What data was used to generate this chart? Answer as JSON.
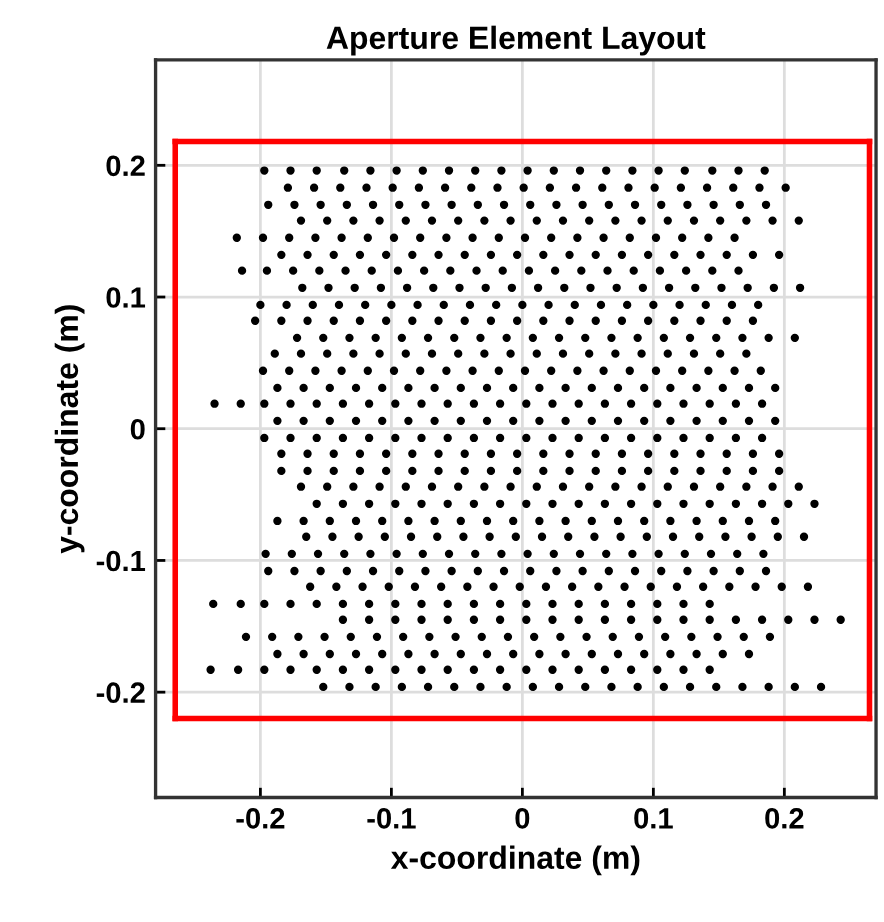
{
  "chart_data": {
    "type": "scatter",
    "title": "Aperture Element Layout",
    "xlabel": "x-coordinate (m)",
    "ylabel": "y-coordinate (m)",
    "xlim": [
      -0.28,
      0.27
    ],
    "ylim": [
      -0.28,
      0.28
    ],
    "xticks": [
      -0.2,
      -0.1,
      0,
      0.1,
      0.2
    ],
    "yticks": [
      -0.2,
      -0.1,
      0,
      0.1,
      0.2
    ],
    "grid": true,
    "marker": "circle",
    "series": [
      {
        "color": "#000000",
        "x": [
          -0.197,
          -0.177,
          -0.157,
          -0.136,
          -0.116,
          -0.096,
          -0.076,
          -0.056,
          -0.036,
          -0.016,
          0.004,
          0.024,
          0.044,
          0.064,
          0.084,
          0.104,
          0.124,
          0.145,
          0.165,
          0.185
        ],
        "values": [
          0.196,
          0.196,
          0.196,
          0.196,
          0.196,
          0.196,
          0.196,
          0.196,
          0.196,
          0.196,
          0.196,
          0.196,
          0.196,
          0.196,
          0.196,
          0.196,
          0.196,
          0.196,
          0.196,
          0.196
        ]
      },
      {
        "color": "#000000",
        "x": [
          -0.179,
          -0.159,
          -0.139,
          -0.119,
          -0.099,
          -0.079,
          -0.059,
          -0.039,
          -0.019,
          0.001,
          0.021,
          0.041,
          0.061,
          0.081,
          0.101,
          0.121,
          0.141,
          0.161,
          0.181,
          0.201
        ],
        "values": [
          0.183,
          0.183,
          0.183,
          0.183,
          0.183,
          0.183,
          0.183,
          0.183,
          0.183,
          0.183,
          0.183,
          0.183,
          0.183,
          0.183,
          0.183,
          0.183,
          0.183,
          0.183,
          0.183,
          0.183
        ]
      },
      {
        "color": "#000000",
        "x": [
          -0.194,
          -0.174,
          -0.154,
          -0.134,
          -0.114,
          -0.094,
          -0.074,
          -0.054,
          -0.034,
          -0.014,
          0.006,
          0.026,
          0.046,
          0.066,
          0.086,
          0.106,
          0.126,
          0.146,
          0.166,
          0.186
        ],
        "values": [
          0.17,
          0.17,
          0.17,
          0.17,
          0.17,
          0.17,
          0.17,
          0.17,
          0.17,
          0.17,
          0.17,
          0.17,
          0.17,
          0.17,
          0.17,
          0.17,
          0.17,
          0.17,
          0.17,
          0.17
        ]
      },
      {
        "color": "#000000",
        "x": [
          -0.169,
          -0.149,
          -0.129,
          -0.109,
          -0.089,
          -0.069,
          -0.049,
          -0.029,
          -0.009,
          0.011,
          0.031,
          0.051,
          0.071,
          0.091,
          0.111,
          0.131,
          0.151,
          0.171,
          0.191,
          0.211
        ],
        "values": [
          0.158,
          0.158,
          0.158,
          0.158,
          0.158,
          0.158,
          0.158,
          0.158,
          0.158,
          0.158,
          0.158,
          0.158,
          0.158,
          0.158,
          0.158,
          0.158,
          0.158,
          0.158,
          0.158,
          0.158
        ]
      },
      {
        "color": "#000000",
        "x": [
          -0.218,
          -0.198,
          -0.178,
          -0.158,
          -0.138,
          -0.118,
          -0.098,
          -0.078,
          -0.058,
          -0.038,
          -0.018,
          0.002,
          0.022,
          0.042,
          0.062,
          0.082,
          0.102,
          0.122,
          0.142,
          0.162
        ],
        "values": [
          0.145,
          0.145,
          0.145,
          0.145,
          0.145,
          0.145,
          0.145,
          0.145,
          0.145,
          0.145,
          0.145,
          0.145,
          0.145,
          0.145,
          0.145,
          0.145,
          0.145,
          0.145,
          0.145,
          0.145
        ]
      },
      {
        "color": "#000000",
        "x": [
          -0.184,
          -0.164,
          -0.144,
          -0.124,
          -0.104,
          -0.084,
          -0.064,
          -0.044,
          -0.024,
          -0.004,
          0.016,
          0.036,
          0.056,
          0.076,
          0.096,
          0.116,
          0.136,
          0.156,
          0.176,
          0.196
        ],
        "values": [
          0.132,
          0.132,
          0.132,
          0.132,
          0.132,
          0.132,
          0.132,
          0.132,
          0.132,
          0.132,
          0.132,
          0.132,
          0.132,
          0.132,
          0.132,
          0.132,
          0.132,
          0.132,
          0.132,
          0.132
        ]
      },
      {
        "color": "#000000",
        "x": [
          -0.214,
          -0.195,
          -0.175,
          -0.155,
          -0.135,
          -0.115,
          -0.095,
          -0.075,
          -0.055,
          -0.035,
          -0.015,
          0.005,
          0.025,
          0.045,
          0.065,
          0.085,
          0.105,
          0.125,
          0.145,
          0.165
        ],
        "values": [
          0.12,
          0.12,
          0.12,
          0.12,
          0.12,
          0.12,
          0.12,
          0.12,
          0.12,
          0.12,
          0.12,
          0.12,
          0.12,
          0.12,
          0.12,
          0.12,
          0.12,
          0.12,
          0.12,
          0.12
        ]
      },
      {
        "color": "#000000",
        "x": [
          -0.168,
          -0.148,
          -0.128,
          -0.108,
          -0.088,
          -0.068,
          -0.048,
          -0.028,
          -0.008,
          0.012,
          0.032,
          0.052,
          0.072,
          0.092,
          0.112,
          0.132,
          0.152,
          0.172,
          0.192,
          0.212
        ],
        "values": [
          0.107,
          0.107,
          0.107,
          0.107,
          0.107,
          0.107,
          0.107,
          0.107,
          0.107,
          0.107,
          0.107,
          0.107,
          0.107,
          0.107,
          0.107,
          0.107,
          0.107,
          0.107,
          0.107,
          0.107
        ]
      },
      {
        "color": "#000000",
        "x": [
          -0.2,
          -0.18,
          -0.16,
          -0.14,
          -0.12,
          -0.1,
          -0.08,
          -0.06,
          -0.04,
          -0.02,
          0,
          0.02,
          0.04,
          0.06,
          0.08,
          0.1,
          0.12,
          0.14,
          0.16,
          0.18
        ],
        "values": [
          0.094,
          0.094,
          0.094,
          0.094,
          0.094,
          0.094,
          0.094,
          0.094,
          0.094,
          0.094,
          0.094,
          0.094,
          0.094,
          0.094,
          0.094,
          0.094,
          0.094,
          0.094,
          0.094,
          0.094
        ]
      },
      {
        "color": "#000000",
        "x": [
          -0.204,
          -0.184,
          -0.164,
          -0.144,
          -0.124,
          -0.104,
          -0.084,
          -0.064,
          -0.044,
          -0.024,
          -0.004,
          0.016,
          0.036,
          0.056,
          0.076,
          0.096,
          0.116,
          0.136,
          0.156,
          0.176
        ],
        "values": [
          0.082,
          0.082,
          0.082,
          0.082,
          0.082,
          0.082,
          0.082,
          0.082,
          0.082,
          0.082,
          0.082,
          0.082,
          0.082,
          0.082,
          0.082,
          0.082,
          0.082,
          0.082,
          0.082,
          0.082
        ]
      },
      {
        "color": "#000000",
        "x": [
          -0.172,
          -0.152,
          -0.132,
          -0.112,
          -0.092,
          -0.072,
          -0.052,
          -0.032,
          -0.012,
          0.008,
          0.028,
          0.048,
          0.068,
          0.088,
          0.108,
          0.128,
          0.148,
          0.168,
          0.188,
          0.208
        ],
        "values": [
          0.069,
          0.069,
          0.069,
          0.069,
          0.069,
          0.069,
          0.069,
          0.069,
          0.069,
          0.069,
          0.069,
          0.069,
          0.069,
          0.069,
          0.069,
          0.069,
          0.069,
          0.069,
          0.069,
          0.069
        ]
      },
      {
        "color": "#000000",
        "x": [
          -0.189,
          -0.169,
          -0.149,
          -0.129,
          -0.109,
          -0.089,
          -0.069,
          -0.049,
          -0.029,
          -0.009,
          0.011,
          0.031,
          0.051,
          0.071,
          0.091,
          0.111,
          0.131,
          0.151,
          0.171
        ],
        "values": [
          0.057,
          0.057,
          0.057,
          0.057,
          0.057,
          0.057,
          0.057,
          0.057,
          0.057,
          0.057,
          0.057,
          0.057,
          0.057,
          0.057,
          0.057,
          0.057,
          0.057,
          0.057,
          0.057
        ]
      },
      {
        "color": "#000000",
        "x": [
          -0.198,
          -0.178,
          -0.158,
          -0.138,
          -0.118,
          -0.098,
          -0.078,
          -0.058,
          -0.038,
          -0.018,
          0.002,
          0.022,
          0.042,
          0.062,
          0.082,
          0.102,
          0.122,
          0.142,
          0.162,
          0.182
        ],
        "values": [
          0.044,
          0.044,
          0.044,
          0.044,
          0.044,
          0.044,
          0.044,
          0.044,
          0.044,
          0.044,
          0.044,
          0.044,
          0.044,
          0.044,
          0.044,
          0.044,
          0.044,
          0.044,
          0.044,
          0.044
        ]
      },
      {
        "color": "#000000",
        "x": [
          -0.187,
          -0.167,
          -0.147,
          -0.127,
          -0.107,
          -0.087,
          -0.067,
          -0.047,
          -0.027,
          -0.007,
          0.013,
          0.033,
          0.053,
          0.073,
          0.093,
          0.113,
          0.133,
          0.153,
          0.173,
          0.193
        ],
        "values": [
          0.031,
          0.031,
          0.031,
          0.031,
          0.031,
          0.031,
          0.031,
          0.031,
          0.031,
          0.031,
          0.031,
          0.031,
          0.031,
          0.031,
          0.031,
          0.031,
          0.031,
          0.031,
          0.031,
          0.031
        ]
      },
      {
        "color": "#000000",
        "x": [
          -0.235,
          -0.215,
          -0.197,
          -0.177,
          -0.157,
          -0.137,
          -0.117,
          -0.097,
          -0.077,
          -0.057,
          -0.037,
          -0.017,
          0.003,
          0.023,
          0.043,
          0.063,
          0.083,
          0.103,
          0.123,
          0.143,
          0.163,
          0.183
        ],
        "values": [
          0.019,
          0.019,
          0.019,
          0.019,
          0.019,
          0.019,
          0.019,
          0.019,
          0.019,
          0.019,
          0.019,
          0.019,
          0.019,
          0.019,
          0.019,
          0.019,
          0.019,
          0.019,
          0.019,
          0.019,
          0.019,
          0.019
        ]
      },
      {
        "color": "#000000",
        "x": [
          -0.187,
          -0.167,
          -0.147,
          -0.127,
          -0.107,
          -0.087,
          -0.067,
          -0.047,
          -0.027,
          -0.007,
          0.013,
          0.033,
          0.053,
          0.073,
          0.093,
          0.113,
          0.133,
          0.153,
          0.173,
          0.193
        ],
        "values": [
          0.006,
          0.006,
          0.006,
          0.006,
          0.006,
          0.006,
          0.006,
          0.006,
          0.006,
          0.006,
          0.006,
          0.006,
          0.006,
          0.006,
          0.006,
          0.006,
          0.006,
          0.006,
          0.006,
          0.006
        ]
      },
      {
        "color": "#000000",
        "x": [
          -0.197,
          -0.177,
          -0.157,
          -0.137,
          -0.117,
          -0.097,
          -0.077,
          -0.057,
          -0.037,
          -0.017,
          0.003,
          0.023,
          0.043,
          0.063,
          0.083,
          0.103,
          0.123,
          0.143,
          0.163,
          0.183
        ],
        "values": [
          -0.007,
          -0.007,
          -0.007,
          -0.007,
          -0.007,
          -0.007,
          -0.007,
          -0.007,
          -0.007,
          -0.007,
          -0.007,
          -0.007,
          -0.007,
          -0.007,
          -0.007,
          -0.007,
          -0.007,
          -0.007,
          -0.007,
          -0.007
        ]
      },
      {
        "color": "#000000",
        "x": [
          -0.184,
          -0.164,
          -0.144,
          -0.124,
          -0.104,
          -0.084,
          -0.064,
          -0.044,
          -0.024,
          -0.004,
          0.016,
          0.036,
          0.056,
          0.076,
          0.096,
          0.116,
          0.136,
          0.156,
          0.176,
          0.196
        ],
        "values": [
          -0.019,
          -0.019,
          -0.019,
          -0.019,
          -0.019,
          -0.019,
          -0.019,
          -0.019,
          -0.019,
          -0.019,
          -0.019,
          -0.019,
          -0.019,
          -0.019,
          -0.019,
          -0.019,
          -0.019,
          -0.019,
          -0.019,
          -0.019
        ]
      },
      {
        "color": "#000000",
        "x": [
          -0.184,
          -0.164,
          -0.144,
          -0.124,
          -0.104,
          -0.084,
          -0.064,
          -0.044,
          -0.024,
          -0.004,
          0.016,
          0.036,
          0.056,
          0.076,
          0.096,
          0.116,
          0.136,
          0.156,
          0.176,
          0.196
        ],
        "values": [
          -0.032,
          -0.032,
          -0.032,
          -0.032,
          -0.032,
          -0.032,
          -0.032,
          -0.032,
          -0.032,
          -0.032,
          -0.032,
          -0.032,
          -0.032,
          -0.032,
          -0.032,
          -0.032,
          -0.032,
          -0.032,
          -0.032,
          -0.032
        ]
      },
      {
        "color": "#000000",
        "x": [
          -0.169,
          -0.149,
          -0.129,
          -0.109,
          -0.089,
          -0.069,
          -0.049,
          -0.029,
          -0.009,
          0.011,
          0.031,
          0.051,
          0.071,
          0.091,
          0.111,
          0.131,
          0.151,
          0.171,
          0.191,
          0.211
        ],
        "values": [
          -0.044,
          -0.044,
          -0.044,
          -0.044,
          -0.044,
          -0.044,
          -0.044,
          -0.044,
          -0.044,
          -0.044,
          -0.044,
          -0.044,
          -0.044,
          -0.044,
          -0.044,
          -0.044,
          -0.044,
          -0.044,
          -0.044,
          -0.044
        ]
      },
      {
        "color": "#000000",
        "x": [
          -0.157,
          -0.137,
          -0.117,
          -0.097,
          -0.077,
          -0.057,
          -0.037,
          -0.017,
          0.003,
          0.023,
          0.043,
          0.063,
          0.083,
          0.103,
          0.123,
          0.143,
          0.163,
          0.183,
          0.203,
          0.223
        ],
        "values": [
          -0.057,
          -0.057,
          -0.057,
          -0.057,
          -0.057,
          -0.057,
          -0.057,
          -0.057,
          -0.057,
          -0.057,
          -0.057,
          -0.057,
          -0.057,
          -0.057,
          -0.057,
          -0.057,
          -0.057,
          -0.057,
          -0.057,
          -0.057
        ]
      },
      {
        "color": "#000000",
        "x": [
          -0.187,
          -0.167,
          -0.147,
          -0.127,
          -0.107,
          -0.087,
          -0.067,
          -0.047,
          -0.027,
          -0.007,
          0.013,
          0.033,
          0.053,
          0.073,
          0.093,
          0.113,
          0.133,
          0.153,
          0.173,
          0.193
        ],
        "values": [
          -0.07,
          -0.07,
          -0.07,
          -0.07,
          -0.07,
          -0.07,
          -0.07,
          -0.07,
          -0.07,
          -0.07,
          -0.07,
          -0.07,
          -0.07,
          -0.07,
          -0.07,
          -0.07,
          -0.07,
          -0.07,
          -0.07,
          -0.07
        ]
      },
      {
        "color": "#000000",
        "x": [
          -0.165,
          -0.145,
          -0.125,
          -0.105,
          -0.085,
          -0.065,
          -0.045,
          -0.025,
          -0.005,
          0.015,
          0.035,
          0.055,
          0.075,
          0.095,
          0.115,
          0.135,
          0.155,
          0.175,
          0.195,
          0.215
        ],
        "values": [
          -0.082,
          -0.082,
          -0.082,
          -0.082,
          -0.082,
          -0.082,
          -0.082,
          -0.082,
          -0.082,
          -0.082,
          -0.082,
          -0.082,
          -0.082,
          -0.082,
          -0.082,
          -0.082,
          -0.082,
          -0.082,
          -0.082,
          -0.082
        ]
      },
      {
        "color": "#000000",
        "x": [
          -0.196,
          -0.176,
          -0.156,
          -0.136,
          -0.116,
          -0.096,
          -0.076,
          -0.056,
          -0.036,
          -0.016,
          0.004,
          0.024,
          0.044,
          0.064,
          0.084,
          0.104,
          0.124,
          0.144,
          0.164,
          0.184
        ],
        "values": [
          -0.095,
          -0.095,
          -0.095,
          -0.095,
          -0.095,
          -0.095,
          -0.095,
          -0.095,
          -0.095,
          -0.095,
          -0.095,
          -0.095,
          -0.095,
          -0.095,
          -0.095,
          -0.095,
          -0.095,
          -0.095,
          -0.095,
          -0.095
        ]
      },
      {
        "color": "#000000",
        "x": [
          -0.194,
          -0.174,
          -0.154,
          -0.134,
          -0.114,
          -0.094,
          -0.074,
          -0.054,
          -0.034,
          -0.014,
          0.006,
          0.026,
          0.046,
          0.066,
          0.086,
          0.106,
          0.126,
          0.146,
          0.166,
          0.186
        ],
        "values": [
          -0.108,
          -0.108,
          -0.108,
          -0.108,
          -0.108,
          -0.108,
          -0.108,
          -0.108,
          -0.108,
          -0.108,
          -0.108,
          -0.108,
          -0.108,
          -0.108,
          -0.108,
          -0.108,
          -0.108,
          -0.108,
          -0.108,
          -0.108
        ]
      },
      {
        "color": "#000000",
        "x": [
          -0.162,
          -0.142,
          -0.122,
          -0.102,
          -0.082,
          -0.062,
          -0.042,
          -0.022,
          -0.002,
          0.018,
          0.038,
          0.058,
          0.078,
          0.098,
          0.118,
          0.138,
          0.158,
          0.178,
          0.198,
          0.218
        ],
        "values": [
          -0.12,
          -0.12,
          -0.12,
          -0.12,
          -0.12,
          -0.12,
          -0.12,
          -0.12,
          -0.12,
          -0.12,
          -0.12,
          -0.12,
          -0.12,
          -0.12,
          -0.12,
          -0.12,
          -0.12,
          -0.12,
          -0.12,
          -0.12
        ]
      },
      {
        "color": "#000000",
        "x": [
          -0.236,
          -0.215,
          -0.197,
          -0.177,
          -0.157,
          -0.137,
          -0.117,
          -0.097,
          -0.077,
          -0.057,
          -0.037,
          -0.017,
          0.003,
          0.023,
          0.043,
          0.063,
          0.083,
          0.103,
          0.123,
          0.143
        ],
        "values": [
          -0.133,
          -0.133,
          -0.133,
          -0.133,
          -0.133,
          -0.133,
          -0.133,
          -0.133,
          -0.133,
          -0.133,
          -0.133,
          -0.133,
          -0.133,
          -0.133,
          -0.133,
          -0.133,
          -0.133,
          -0.133,
          -0.133,
          -0.133
        ]
      },
      {
        "color": "#000000",
        "x": [
          -0.137,
          -0.117,
          -0.097,
          -0.077,
          -0.057,
          -0.037,
          -0.017,
          0.003,
          0.023,
          0.043,
          0.063,
          0.083,
          0.103,
          0.123,
          0.143,
          0.163,
          0.183,
          0.203,
          0.223,
          0.243
        ],
        "values": [
          -0.145,
          -0.145,
          -0.145,
          -0.145,
          -0.145,
          -0.145,
          -0.145,
          -0.145,
          -0.145,
          -0.145,
          -0.145,
          -0.145,
          -0.145,
          -0.145,
          -0.145,
          -0.145,
          -0.145,
          -0.145,
          -0.145,
          -0.145
        ]
      },
      {
        "color": "#000000",
        "x": [
          -0.211,
          -0.191,
          -0.171,
          -0.151,
          -0.131,
          -0.111,
          -0.091,
          -0.071,
          -0.051,
          -0.031,
          -0.011,
          0.009,
          0.029,
          0.049,
          0.069,
          0.089,
          0.109,
          0.129,
          0.149,
          0.169,
          0.189
        ],
        "values": [
          -0.158,
          -0.158,
          -0.158,
          -0.158,
          -0.158,
          -0.158,
          -0.158,
          -0.158,
          -0.158,
          -0.158,
          -0.158,
          -0.158,
          -0.158,
          -0.158,
          -0.158,
          -0.158,
          -0.158,
          -0.158,
          -0.158,
          -0.158,
          -0.158
        ]
      },
      {
        "color": "#000000",
        "x": [
          -0.187,
          -0.167,
          -0.147,
          -0.127,
          -0.107,
          -0.087,
          -0.067,
          -0.047,
          -0.027,
          -0.007,
          0.013,
          0.033,
          0.053,
          0.073,
          0.093,
          0.113,
          0.133,
          0.153,
          0.173
        ],
        "values": [
          -0.171,
          -0.171,
          -0.171,
          -0.171,
          -0.171,
          -0.171,
          -0.171,
          -0.171,
          -0.171,
          -0.171,
          -0.171,
          -0.171,
          -0.171,
          -0.171,
          -0.171,
          -0.171,
          -0.171,
          -0.171,
          -0.171
        ]
      },
      {
        "color": "#000000",
        "x": [
          -0.238,
          -0.217,
          -0.197,
          -0.177,
          -0.157,
          -0.137,
          -0.117,
          -0.097,
          -0.077,
          -0.057,
          -0.037,
          -0.017,
          0.003,
          0.023,
          0.043,
          0.063,
          0.083,
          0.103,
          0.123,
          0.143
        ],
        "values": [
          -0.183,
          -0.183,
          -0.183,
          -0.183,
          -0.183,
          -0.183,
          -0.183,
          -0.183,
          -0.183,
          -0.183,
          -0.183,
          -0.183,
          -0.183,
          -0.183,
          -0.183,
          -0.183,
          -0.183,
          -0.183,
          -0.183,
          -0.183
        ]
      },
      {
        "color": "#000000",
        "x": [
          -0.152,
          -0.132,
          -0.112,
          -0.092,
          -0.072,
          -0.052,
          -0.032,
          -0.012,
          0.008,
          0.028,
          0.048,
          0.068,
          0.088,
          0.108,
          0.128,
          0.148,
          0.168,
          0.188,
          0.208,
          0.228
        ],
        "values": [
          -0.196,
          -0.196,
          -0.196,
          -0.196,
          -0.196,
          -0.196,
          -0.196,
          -0.196,
          -0.196,
          -0.196,
          -0.196,
          -0.196,
          -0.196,
          -0.196,
          -0.196,
          -0.196,
          -0.196,
          -0.196,
          -0.196,
          -0.196
        ]
      },
      {
        "type": "line",
        "color": "#ff0000",
        "marker": "none",
        "x": [
          -0.265,
          0.265
        ],
        "values": [
          0.218,
          0.218
        ]
      },
      {
        "type": "line",
        "color": "#ff0000",
        "marker": "none",
        "x": [
          -0.265,
          0.265
        ],
        "values": [
          -0.22,
          -0.22
        ]
      },
      {
        "type": "line",
        "color": "#ff0000",
        "marker": "none",
        "x": [
          -0.265,
          -0.265
        ],
        "values": [
          -0.22,
          0.218
        ]
      },
      {
        "type": "line",
        "color": "#ff0000",
        "marker": "none",
        "x": [
          0.265,
          0.265
        ],
        "values": [
          -0.22,
          0.218
        ]
      }
    ]
  }
}
